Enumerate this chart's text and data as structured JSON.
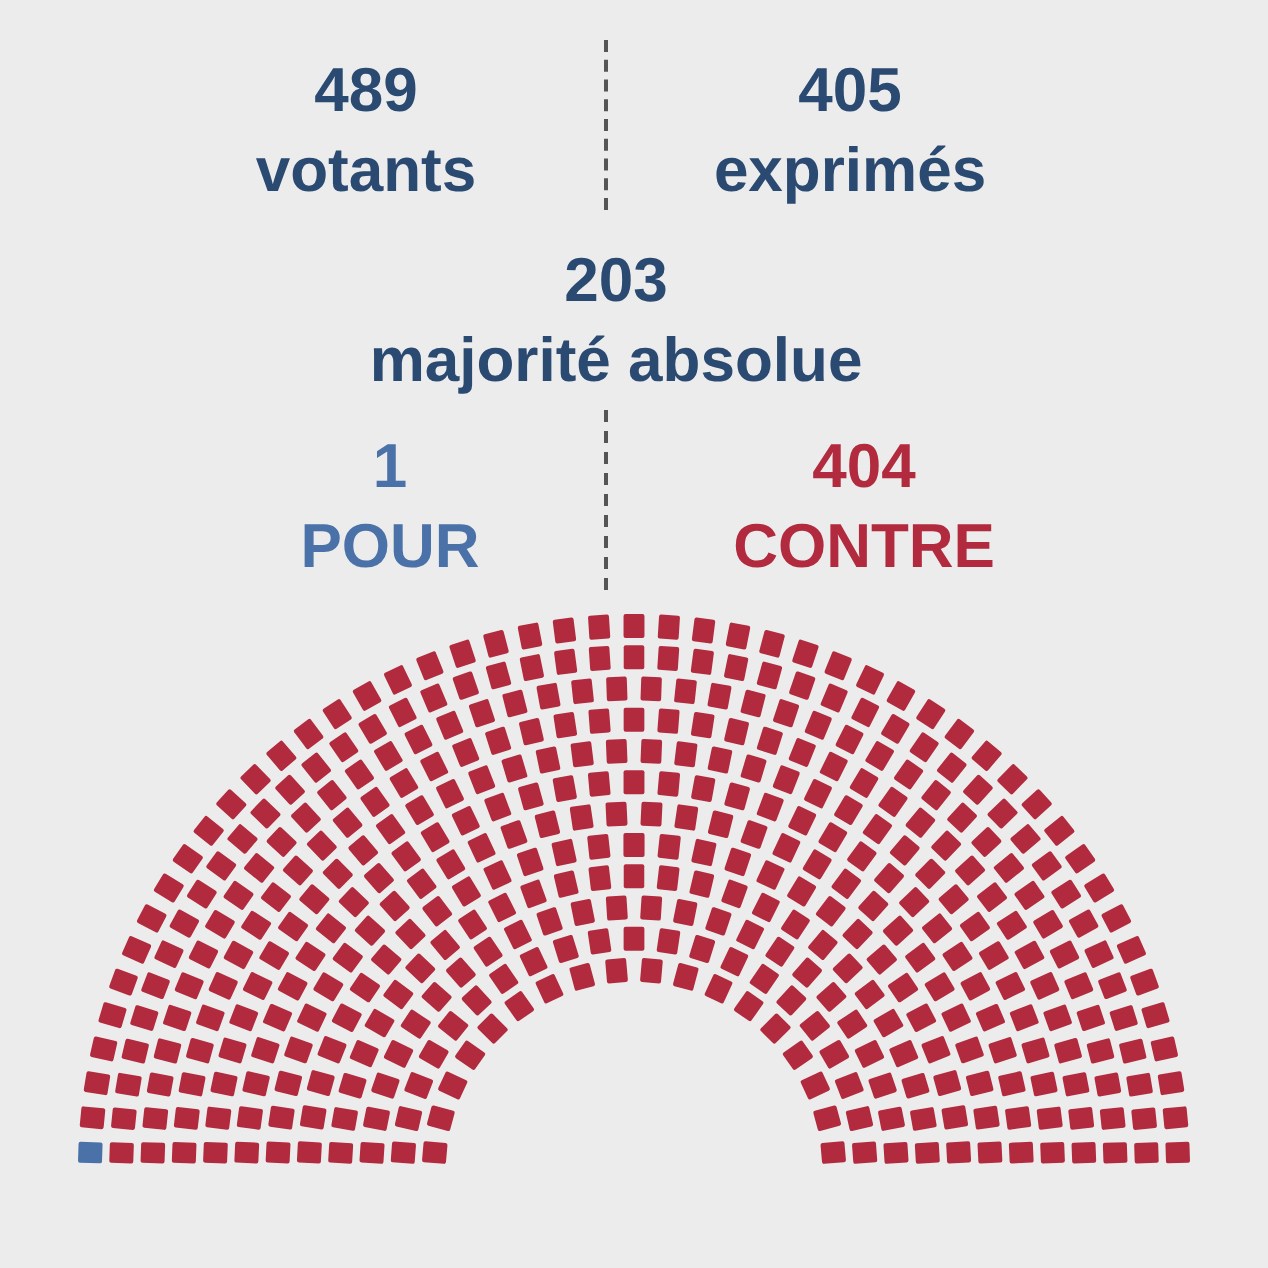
{
  "chart_data": {
    "type": "other",
    "annotations": [
      "489\nvotants",
      "405\nexprimés",
      "203\nmajorité absolue"
    ],
    "categories": [
      "POUR",
      "CONTRE"
    ],
    "values": [
      1,
      404
    ],
    "data_labels": true,
    "colors": [
      "#4a72a8",
      "#b22a3e"
    ]
  }
}
